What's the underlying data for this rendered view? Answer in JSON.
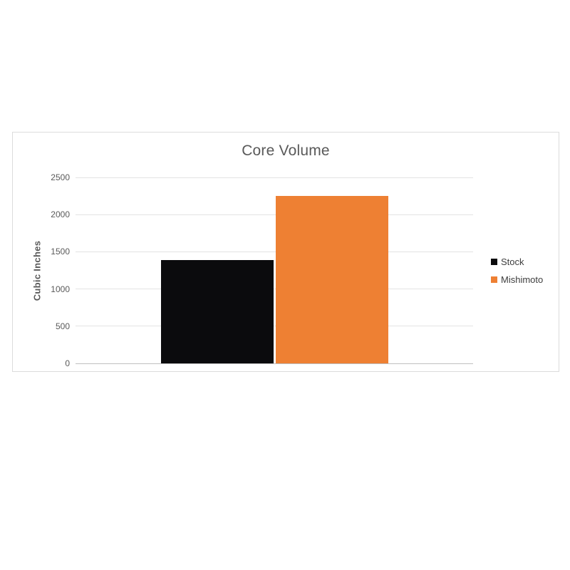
{
  "page": {
    "background_color": "#ffffff",
    "chart_border_color": "#dcdcdc"
  },
  "chart_data": {
    "type": "bar",
    "title": "Core Volume",
    "ylabel": "Cubic Inches",
    "xlabel": "",
    "categories": [
      "Core Volume"
    ],
    "series": [
      {
        "name": "Stock",
        "values": [
          1390
        ],
        "color": "#0b0b0d"
      },
      {
        "name": "Mishimoto",
        "values": [
          2250
        ],
        "color": "#ee8033"
      }
    ],
    "ylim": [
      0,
      2500
    ],
    "yticks": [
      0,
      500,
      1000,
      1500,
      2000,
      2500
    ],
    "grid": true,
    "legend_position": "right",
    "legend_marker": "square"
  },
  "colors": {
    "title_text": "#595959",
    "axis_text": "#595959",
    "legend_text": "#3d3d3d",
    "gridline": "#e3e3e3",
    "axis_line": "#bfbfbf"
  }
}
